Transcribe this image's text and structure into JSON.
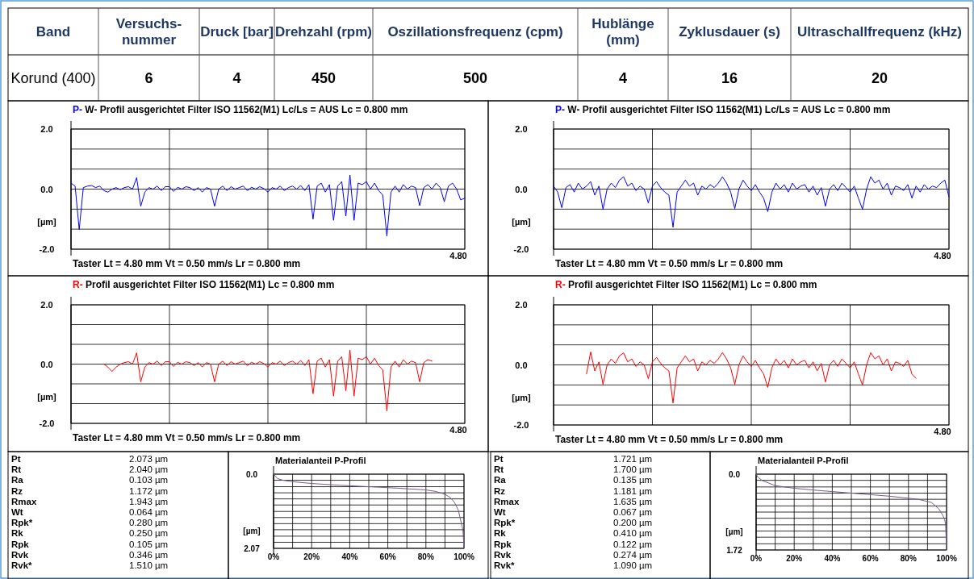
{
  "chart_data": [
    {
      "type": "other",
      "categories": [
        "Band",
        "Versuchs- nummer",
        "Druck [bar]",
        "Drehzahl (rpm)",
        "Oszillationsfrequenz (cpm)",
        "Hublänge (mm)",
        "Zyklusdauer (s)",
        "Ultraschallfrequenz (kHz)"
      ],
      "value_labels": [
        "Korund (400)",
        "6",
        "4",
        "450",
        "500",
        "4",
        "16",
        "20"
      ]
    },
    {
      "type": "line",
      "title": "P- W- Profil ausgerichtet Filter ISO 11562(M1) Lc/Ls = AUS Lc = 0.800 mm",
      "xlabel": "Taster Lt = 4.80 mm Vt = 0.50 mm/s Lr = 0.800 mm",
      "ylabel": "[µm]",
      "annotations": [
        "4.80"
      ],
      "ylim": [
        -2,
        2
      ],
      "grid": true,
      "categories": [
        null,
        null,
        null,
        null,
        null,
        null,
        null,
        null,
        null,
        null,
        null,
        null,
        null,
        null,
        null,
        null,
        null,
        null,
        null,
        null,
        null,
        null,
        null,
        null,
        null,
        null,
        null,
        null,
        null,
        null,
        null,
        null,
        null,
        null,
        null,
        null,
        null,
        null,
        null,
        null,
        null,
        null,
        null,
        null,
        null,
        null,
        null,
        null,
        null,
        null,
        null,
        null,
        null,
        null,
        null,
        null,
        null,
        null,
        null,
        null,
        null,
        null,
        null,
        null,
        null,
        null,
        null,
        null,
        null,
        null,
        null,
        null,
        null,
        null,
        null,
        null,
        null,
        null,
        null,
        null,
        null,
        null,
        null,
        null,
        null,
        null,
        null,
        null,
        null,
        null,
        null,
        null,
        null,
        null,
        null,
        null,
        null
      ],
      "yticks": [
        {
          "value": -2,
          "label": "-2.0"
        },
        {
          "value": -1.333,
          "label": null
        },
        {
          "value": -0.667,
          "label": null
        },
        {
          "value": 0,
          "label": "0.0"
        },
        {
          "value": 0.667,
          "label": null
        },
        {
          "value": 1.333,
          "label": null
        },
        {
          "value": 2,
          "label": "2.0"
        }
      ],
      "series": [
        {
          "color": "#0000ff",
          "values": [
            0.2,
            0.1,
            -1.35,
            0.05,
            0.1,
            0.12,
            0.05,
            0.1,
            -0.05,
            -0.1,
            0,
            0.05,
            -0.02,
            0.05,
            0.08,
            0,
            0.38,
            -0.57,
            -0.1,
            0.05,
            0,
            0.1,
            -0.05,
            0.08,
            0.08,
            -0.08,
            0.06,
            0,
            0.08,
            0.05,
            -0.05,
            0.05,
            -0.1,
            0.05,
            0,
            -0.57,
            0,
            0.1,
            -0.05,
            0.08,
            0,
            0.05,
            0.1,
            -0.05,
            0.06,
            0,
            0.08,
            0.02,
            -0.1,
            0.05,
            0,
            0.1,
            -0.05,
            0.05,
            0.1,
            0,
            0.12,
            -0.05,
            0.15,
            -1.0,
            0.1,
            0.2,
            -0.1,
            0.15,
            -1.04,
            0.1,
            0.25,
            -0.9,
            0.47,
            -1.04,
            0.2,
            0.15,
            0.25,
            0,
            0.2,
            -0.05,
            -0.2,
            -1.56,
            -0.1,
            0.1,
            -0.1,
            0.15,
            0,
            0.1,
            0.05,
            -0.55,
            0.05,
            0.15,
            0,
            0.2,
            0.05,
            -0.42,
            0.1,
            0.2,
            0,
            -0.36,
            -0.3
          ]
        }
      ]
    },
    {
      "type": "line",
      "title": "P- W- Profil ausgerichtet Filter ISO 11562(M1) Lc/Ls = AUS Lc = 0.800 mm",
      "xlabel": "Taster Lt = 4.80 mm Vt = 0.50 mm/s Lr = 0.800 mm",
      "ylabel": "[µm]",
      "annotations": [
        "4.80"
      ],
      "ylim": [
        -2,
        2
      ],
      "grid": true,
      "categories": [
        null,
        null,
        null,
        null,
        null,
        null,
        null,
        null,
        null,
        null,
        null,
        null,
        null,
        null,
        null,
        null,
        null,
        null,
        null,
        null,
        null,
        null,
        null,
        null,
        null,
        null,
        null,
        null,
        null,
        null,
        null,
        null,
        null,
        null,
        null,
        null,
        null,
        null,
        null,
        null,
        null,
        null,
        null,
        null,
        null,
        null,
        null,
        null,
        null,
        null,
        null,
        null,
        null,
        null,
        null,
        null,
        null,
        null,
        null,
        null,
        null,
        null,
        null,
        null,
        null,
        null,
        null,
        null,
        null,
        null,
        null,
        null,
        null,
        null,
        null,
        null,
        null,
        null,
        null,
        null,
        null,
        null,
        null,
        null,
        null,
        null,
        null,
        null,
        null,
        null,
        null,
        null,
        null,
        null,
        null,
        null,
        null
      ],
      "yticks": [
        {
          "value": -2,
          "label": "-2.0"
        },
        {
          "value": -1.333,
          "label": null
        },
        {
          "value": -0.667,
          "label": null
        },
        {
          "value": 0,
          "label": "0.0"
        },
        {
          "value": 0.667,
          "label": null
        },
        {
          "value": 1.333,
          "label": null
        },
        {
          "value": 2,
          "label": "2.0"
        }
      ],
      "series": [
        {
          "color": "#0000ff",
          "values": [
            0.1,
            -0.1,
            -0.62,
            0.05,
            0.15,
            -0.1,
            0.2,
            0,
            0.1,
            0.25,
            -0.2,
            0.1,
            -0.67,
            0,
            0.2,
            0.05,
            0.3,
            0.41,
            0.1,
            0.2,
            -0.05,
            0.1,
            0,
            -0.46,
            0.1,
            0.25,
            0.05,
            -0.1,
            -0.2,
            -1.27,
            -0.1,
            0.1,
            0.3,
            0.1,
            0.2,
            -0.2,
            0.1,
            0,
            0.15,
            0.05,
            0.2,
            0.41,
            0.2,
            -0.1,
            -0.65,
            0,
            0.3,
            0.1,
            -0.05,
            0.15,
            -0.1,
            -0.3,
            -0.75,
            -0.1,
            0.2,
            0,
            0.15,
            -0.1,
            0.2,
            0,
            0.1,
            0.15,
            -0.1,
            0.1,
            -0.2,
            0.05,
            -0.57,
            0,
            0.15,
            -0.05,
            0.2,
            0.05,
            -0.1,
            0.1,
            -0.3,
            -0.67,
            0,
            0.41,
            0.2,
            0.3,
            0,
            0.2,
            -0.2,
            0.1,
            0.05,
            -0.05,
            0.15,
            -0.3,
            0.1,
            -0.1,
            0.15,
            0,
            0.1,
            0.05,
            0.2,
            0.3,
            -0.26
          ]
        }
      ]
    },
    {
      "type": "line",
      "title": "R- Profil ausgerichtet Filter ISO 11562(M1) Lc = 0.800 mm",
      "xlabel": "Taster Lt = 4.80 mm Vt = 0.50 mm/s Lr = 0.800 mm",
      "ylabel": "[µm]",
      "annotations": [
        "4.80"
      ],
      "ylim": [
        -2,
        2
      ],
      "grid": true,
      "categories": [
        null,
        null,
        null,
        null,
        null,
        null,
        null,
        null,
        null,
        null,
        null,
        null,
        null,
        null,
        null,
        null,
        null,
        null,
        null,
        null,
        null,
        null,
        null,
        null,
        null,
        null,
        null,
        null,
        null,
        null,
        null,
        null,
        null,
        null,
        null,
        null,
        null,
        null,
        null,
        null,
        null,
        null,
        null,
        null,
        null,
        null,
        null,
        null,
        null,
        null,
        null,
        null,
        null,
        null,
        null,
        null,
        null,
        null,
        null,
        null,
        null,
        null,
        null,
        null,
        null,
        null,
        null,
        null,
        null,
        null,
        null,
        null,
        null,
        null,
        null,
        null,
        null,
        null,
        null,
        null,
        null,
        null,
        null,
        null,
        null,
        null,
        null,
        null,
        null,
        null,
        null,
        null,
        null,
        null,
        null,
        null,
        null
      ],
      "yticks": [
        {
          "value": -2,
          "label": "-2.0"
        },
        {
          "value": -1.333,
          "label": null
        },
        {
          "value": -0.667,
          "label": null
        },
        {
          "value": 0,
          "label": "0.0"
        },
        {
          "value": 0.667,
          "label": null
        },
        {
          "value": 1.333,
          "label": null
        },
        {
          "value": 2,
          "label": "2.0"
        }
      ],
      "series": [
        {
          "color": "#ff0000",
          "values": [
            null,
            null,
            null,
            null,
            null,
            null,
            null,
            null,
            0,
            -0.1,
            -0.25,
            -0.1,
            0,
            0.05,
            0.08,
            0,
            0.38,
            -0.6,
            -0.1,
            0.05,
            0,
            0.1,
            -0.05,
            0.08,
            0.08,
            -0.08,
            0.06,
            0,
            0.08,
            0.05,
            -0.05,
            0.05,
            -0.1,
            0.05,
            0,
            -0.6,
            0,
            0.1,
            -0.05,
            0.08,
            0,
            0.05,
            0.1,
            -0.05,
            0.06,
            0,
            0.08,
            0.02,
            -0.1,
            0.05,
            0,
            0.1,
            -0.05,
            0.05,
            0.1,
            0,
            0.12,
            -0.05,
            0.15,
            -1.0,
            0.1,
            0.2,
            -0.1,
            0.15,
            -1.08,
            0.1,
            0.25,
            -0.9,
            0.47,
            -1.08,
            0.2,
            0.15,
            0.25,
            0,
            0.2,
            -0.05,
            -0.2,
            -1.58,
            -0.1,
            0.1,
            -0.1,
            0.15,
            0,
            0.1,
            0.05,
            -0.6,
            0.05,
            0.15,
            0.1,
            null,
            null,
            null,
            null,
            null,
            null,
            null,
            null
          ]
        }
      ]
    },
    {
      "type": "line",
      "title": "R- Profil ausgerichtet Filter ISO 11562(M1) Lc = 0.800 mm",
      "xlabel": "Taster Lt = 4.80 mm Vt = 0.50 mm/s Lr = 0.800 mm",
      "ylabel": "[µm]",
      "annotations": [
        "4.80"
      ],
      "ylim": [
        -2,
        2
      ],
      "grid": true,
      "categories": [
        null,
        null,
        null,
        null,
        null,
        null,
        null,
        null,
        null,
        null,
        null,
        null,
        null,
        null,
        null,
        null,
        null,
        null,
        null,
        null,
        null,
        null,
        null,
        null,
        null,
        null,
        null,
        null,
        null,
        null,
        null,
        null,
        null,
        null,
        null,
        null,
        null,
        null,
        null,
        null,
        null,
        null,
        null,
        null,
        null,
        null,
        null,
        null,
        null,
        null,
        null,
        null,
        null,
        null,
        null,
        null,
        null,
        null,
        null,
        null,
        null,
        null,
        null,
        null,
        null,
        null,
        null,
        null,
        null,
        null,
        null,
        null,
        null,
        null,
        null,
        null,
        null,
        null,
        null,
        null,
        null,
        null,
        null,
        null,
        null,
        null,
        null,
        null,
        null,
        null,
        null,
        null,
        null,
        null,
        null,
        null,
        null
      ],
      "yticks": [
        {
          "value": -2,
          "label": "-2.0"
        },
        {
          "value": -1.333,
          "label": null
        },
        {
          "value": -0.667,
          "label": null
        },
        {
          "value": 0,
          "label": "0.0"
        },
        {
          "value": 0.667,
          "label": null
        },
        {
          "value": 1.333,
          "label": null
        },
        {
          "value": 2,
          "label": "2.0"
        }
      ],
      "series": [
        {
          "color": "#ff0000",
          "values": [
            null,
            null,
            null,
            null,
            null,
            null,
            null,
            null,
            -0.3,
            0.43,
            -0.2,
            0.1,
            -0.65,
            0,
            0.2,
            0.05,
            0.3,
            0.4,
            0.1,
            0.2,
            -0.05,
            0.1,
            0,
            -0.46,
            0.1,
            0.25,
            0.05,
            -0.1,
            -0.2,
            -1.27,
            -0.1,
            0.1,
            0.3,
            0.1,
            0.2,
            -0.2,
            0.1,
            0,
            0.15,
            0.05,
            0.2,
            0.41,
            0.2,
            -0.1,
            -0.65,
            0,
            0.3,
            0.1,
            -0.05,
            0.15,
            -0.1,
            -0.3,
            -0.75,
            -0.1,
            0.2,
            0,
            0.15,
            -0.1,
            0.2,
            0,
            0.1,
            0.15,
            -0.1,
            0.1,
            -0.2,
            0.05,
            -0.57,
            0,
            0.15,
            -0.05,
            0.2,
            0.05,
            -0.1,
            0.1,
            -0.3,
            -0.67,
            0,
            0.41,
            0.2,
            0.3,
            0,
            0.2,
            -0.2,
            0.1,
            0.05,
            -0.05,
            0.15,
            -0.3,
            -0.45,
            null,
            null,
            null,
            null,
            null,
            null,
            null,
            null
          ]
        }
      ]
    },
    {
      "type": "other",
      "categories": [
        "Pt",
        "Rt",
        "Ra",
        "Rz",
        "Rmax",
        "Wt",
        "Rpk*",
        "Rk",
        "Rpk",
        "Rvk",
        "Rvk*"
      ],
      "value_labels": [
        "2.073 µm",
        "2.040 µm",
        "0.103 µm",
        "1.172 µm",
        "1.943 µm",
        "0.064 µm",
        "0.280 µm",
        "0.250 µm",
        "0.105 µm",
        "0.346 µm",
        "1.510 µm"
      ]
    },
    {
      "type": "line",
      "title": "Materialanteil P-Profil",
      "ylabel": "[µm]",
      "xlim": [
        0,
        100
      ],
      "ylim": [
        2.07,
        0
      ],
      "grid": true,
      "xticks": [
        {
          "value": 0,
          "label": "0%"
        },
        {
          "value": 10,
          "label": null
        },
        {
          "value": 20,
          "label": "20%"
        },
        {
          "value": 30,
          "label": null
        },
        {
          "value": 40,
          "label": "40%"
        },
        {
          "value": 50,
          "label": null
        },
        {
          "value": 60,
          "label": "60%"
        },
        {
          "value": 70,
          "label": null
        },
        {
          "value": 80,
          "label": "80%"
        },
        {
          "value": 90,
          "label": null
        },
        {
          "value": 100,
          "label": "100%"
        }
      ],
      "yticks": [
        {
          "value": 0,
          "label": "0.0"
        },
        {
          "value": 0.17,
          "label": null
        },
        {
          "value": 0.35,
          "label": null
        },
        {
          "value": 0.52,
          "label": null
        },
        {
          "value": 0.69,
          "label": null
        },
        {
          "value": 0.86,
          "label": null
        },
        {
          "value": 1.04,
          "label": null
        },
        {
          "value": 1.21,
          "label": null
        },
        {
          "value": 1.38,
          "label": null
        },
        {
          "value": 1.55,
          "label": null
        },
        {
          "value": 1.73,
          "label": null
        },
        {
          "value": 1.9,
          "label": null
        },
        {
          "value": 2.07,
          "label": "2.07"
        }
      ],
      "series": [
        {
          "color": "#7a5a8a",
          "x": [
            0,
            2,
            5,
            10,
            20,
            35,
            50,
            65,
            80,
            85,
            90,
            93,
            95,
            97,
            98,
            99,
            99.5,
            100
          ],
          "values": [
            0,
            0.12,
            0.17,
            0.21,
            0.26,
            0.31,
            0.35,
            0.39,
            0.44,
            0.48,
            0.56,
            0.66,
            0.79,
            1.0,
            1.23,
            1.45,
            1.6,
            2.07
          ]
        }
      ]
    },
    {
      "type": "other",
      "categories": [
        "Pt",
        "Rt",
        "Ra",
        "Rz",
        "Rmax",
        "Wt",
        "Rpk*",
        "Rk",
        "Rpk",
        "Rvk",
        "Rvk*"
      ],
      "value_labels": [
        "1.721 µm",
        "1.700 µm",
        "0.135 µm",
        "1.181 µm",
        "1.635 µm",
        "0.067 µm",
        "0.200 µm",
        "0.410 µm",
        "0.122 µm",
        "0.274 µm",
        "1.090 µm"
      ]
    },
    {
      "type": "line",
      "title": "Materialanteil P-Profil",
      "ylabel": "[µm]",
      "xlim": [
        0,
        100
      ],
      "ylim": [
        1.72,
        0
      ],
      "grid": true,
      "xticks": [
        {
          "value": 0,
          "label": "0%"
        },
        {
          "value": 10,
          "label": null
        },
        {
          "value": 20,
          "label": "20%"
        },
        {
          "value": 30,
          "label": null
        },
        {
          "value": 40,
          "label": "40%"
        },
        {
          "value": 50,
          "label": null
        },
        {
          "value": 60,
          "label": "60%"
        },
        {
          "value": 70,
          "label": null
        },
        {
          "value": 80,
          "label": "80%"
        },
        {
          "value": 90,
          "label": null
        },
        {
          "value": 100,
          "label": "100%"
        }
      ],
      "yticks": [
        {
          "value": 0,
          "label": "0.0"
        },
        {
          "value": 0.14,
          "label": null
        },
        {
          "value": 0.29,
          "label": null
        },
        {
          "value": 0.43,
          "label": null
        },
        {
          "value": 0.57,
          "label": null
        },
        {
          "value": 0.72,
          "label": null
        },
        {
          "value": 0.86,
          "label": null
        },
        {
          "value": 1.0,
          "label": null
        },
        {
          "value": 1.15,
          "label": null
        },
        {
          "value": 1.29,
          "label": null
        },
        {
          "value": 1.43,
          "label": null
        },
        {
          "value": 1.58,
          "label": null
        },
        {
          "value": 1.72,
          "label": "1.72"
        }
      ],
      "series": [
        {
          "color": "#7a5a8a",
          "x": [
            0,
            1,
            3,
            10,
            20,
            30,
            50,
            70,
            85,
            92,
            96,
            98,
            99,
            99.5,
            100
          ],
          "values": [
            0,
            0.07,
            0.14,
            0.26,
            0.32,
            0.36,
            0.43,
            0.5,
            0.57,
            0.64,
            0.79,
            0.93,
            1.03,
            1.14,
            1.72
          ]
        }
      ]
    }
  ]
}
